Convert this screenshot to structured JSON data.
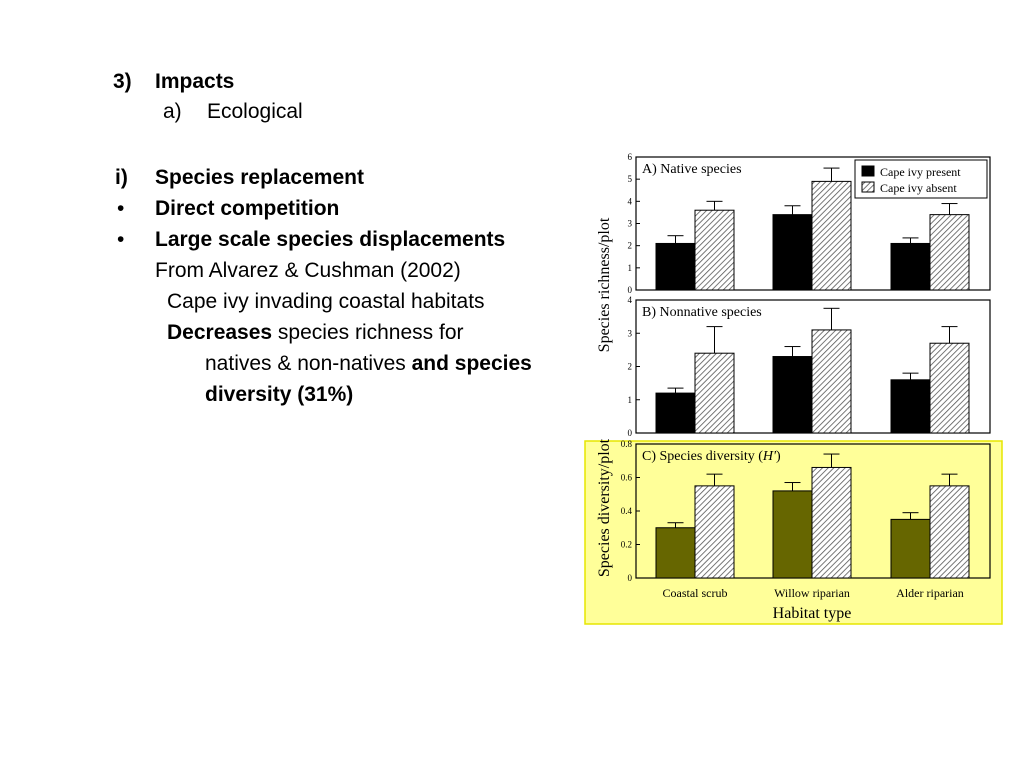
{
  "outline": {
    "impacts_number": "3)",
    "impacts_label": "Impacts",
    "ecological_letter": "a)",
    "ecological_label": "Ecological",
    "species_replacement_marker": "i)",
    "species_replacement": "Species replacement",
    "bullet": "•",
    "direct_competition": "Direct competition",
    "large_scale": "Large scale species displacements",
    "from_source": "From Alvarez & Cushman (2002)",
    "cape_ivy_invading": "Cape ivy invading coastal habitats",
    "decreases_bold": "Decreases",
    "decreases_rest": " species richness for",
    "natives_text": "natives & non-natives ",
    "and_species": "and species",
    "diversity": "diversity (31%)"
  },
  "colors": {
    "highlight": "#ffff99",
    "highlight_border": "#e6e600",
    "present_bar": "#000000",
    "present_bar_highlighted": "#666600",
    "hatch": "#555555"
  },
  "chart_data": {
    "type": "bar",
    "legend": [
      "Cape ivy present",
      "Cape ivy absent"
    ],
    "legend_placement": "top-right",
    "categories": [
      "Coastal  scrub",
      "Willow  riparian",
      "Alder  riparian"
    ],
    "xlabel": "Habitat type",
    "ylabel_richness": "Species richness/plot",
    "ylabel_diversity": "Species diversity/plot",
    "panels": [
      {
        "title": "A) Native species",
        "ylim": [
          0,
          6
        ],
        "ticks": [
          0,
          1,
          2,
          3,
          4,
          5,
          6
        ],
        "series": [
          {
            "name": "Cape ivy present",
            "values": [
              2.1,
              3.4,
              2.1
            ],
            "errors": [
              0.35,
              0.4,
              0.25
            ]
          },
          {
            "name": "Cape ivy absent",
            "values": [
              3.6,
              4.9,
              3.4
            ],
            "errors": [
              0.4,
              0.6,
              0.5
            ]
          }
        ]
      },
      {
        "title": "B) Nonnative  species",
        "ylim": [
          0,
          4
        ],
        "ticks": [
          0,
          1,
          2,
          3,
          4
        ],
        "series": [
          {
            "name": "Cape ivy present",
            "values": [
              1.2,
              2.3,
              1.6
            ],
            "errors": [
              0.15,
              0.3,
              0.2
            ]
          },
          {
            "name": "Cape ivy absent",
            "values": [
              2.4,
              3.1,
              2.7
            ],
            "errors": [
              0.8,
              0.65,
              0.5
            ]
          }
        ]
      },
      {
        "title": "C) Species  diversity (",
        "title_italic": "H'",
        "title_end": ")",
        "ylim": [
          0,
          0.8
        ],
        "ticks": [
          0,
          0.2,
          0.4,
          0.6,
          0.8
        ],
        "tick_labels": [
          "0",
          "0.2",
          "0.4",
          "0.6",
          "0.8"
        ],
        "highlighted": true,
        "series": [
          {
            "name": "Cape ivy present",
            "values": [
              0.3,
              0.52,
              0.35
            ],
            "errors": [
              0.03,
              0.05,
              0.04
            ]
          },
          {
            "name": "Cape ivy absent",
            "values": [
              0.55,
              0.66,
              0.55
            ],
            "errors": [
              0.07,
              0.08,
              0.07
            ]
          }
        ]
      }
    ]
  }
}
